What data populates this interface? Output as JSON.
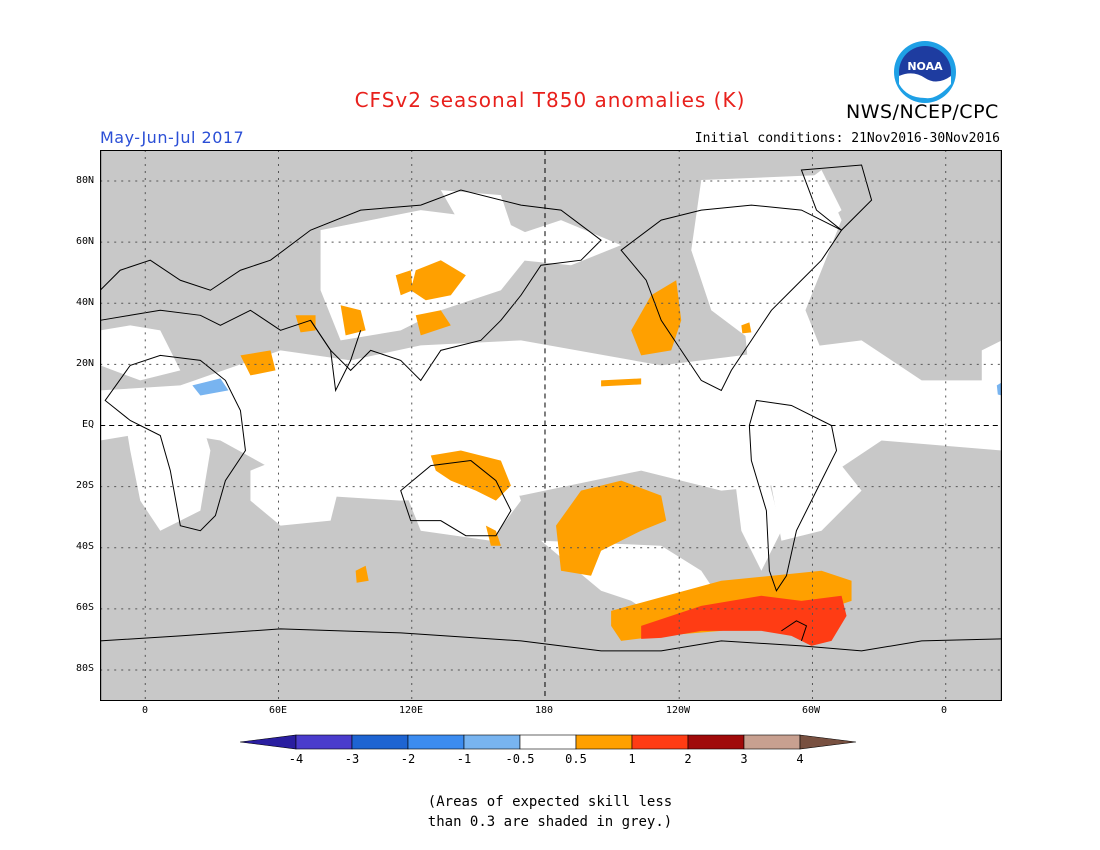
{
  "header": {
    "title": "CFSv2 seasonal T850 anomalies (K)",
    "agency": "NWS/NCEP/CPC",
    "logo_text": "NOAA",
    "period": "May-Jun-Jul 2017",
    "initial_conditions": "Initial conditions: 21Nov2016-30Nov2016"
  },
  "map": {
    "lat_labels": [
      "80N",
      "60N",
      "40N",
      "20N",
      "EQ",
      "20S",
      "40S",
      "60S",
      "80S"
    ],
    "lon_labels": [
      "0",
      "60E",
      "120E",
      "180",
      "120W",
      "60W",
      "0"
    ],
    "colors": {
      "grey_low_skill": "#c8c8c8",
      "neutral": "#ffffff",
      "warm_0_5_1": "#ffa000",
      "warm_1_2": "#ff3c14",
      "cool_m1_m0_5": "#78b4f0"
    }
  },
  "colorbar": {
    "labels": [
      "-4",
      "-3",
      "-2",
      "-1",
      "-0.5",
      "0.5",
      "1",
      "2",
      "3",
      "4"
    ],
    "colors": [
      "#2a1ea0",
      "#4a3ccc",
      "#1e64d2",
      "#3c8cf0",
      "#78b4f0",
      "#ffffff",
      "#ffa000",
      "#ff3c14",
      "#a00a0a",
      "#c8a090",
      "#785040"
    ]
  },
  "footnote": {
    "line1": "(Areas of expected skill less",
    "line2": "than 0.3 are shaded in grey.)"
  }
}
